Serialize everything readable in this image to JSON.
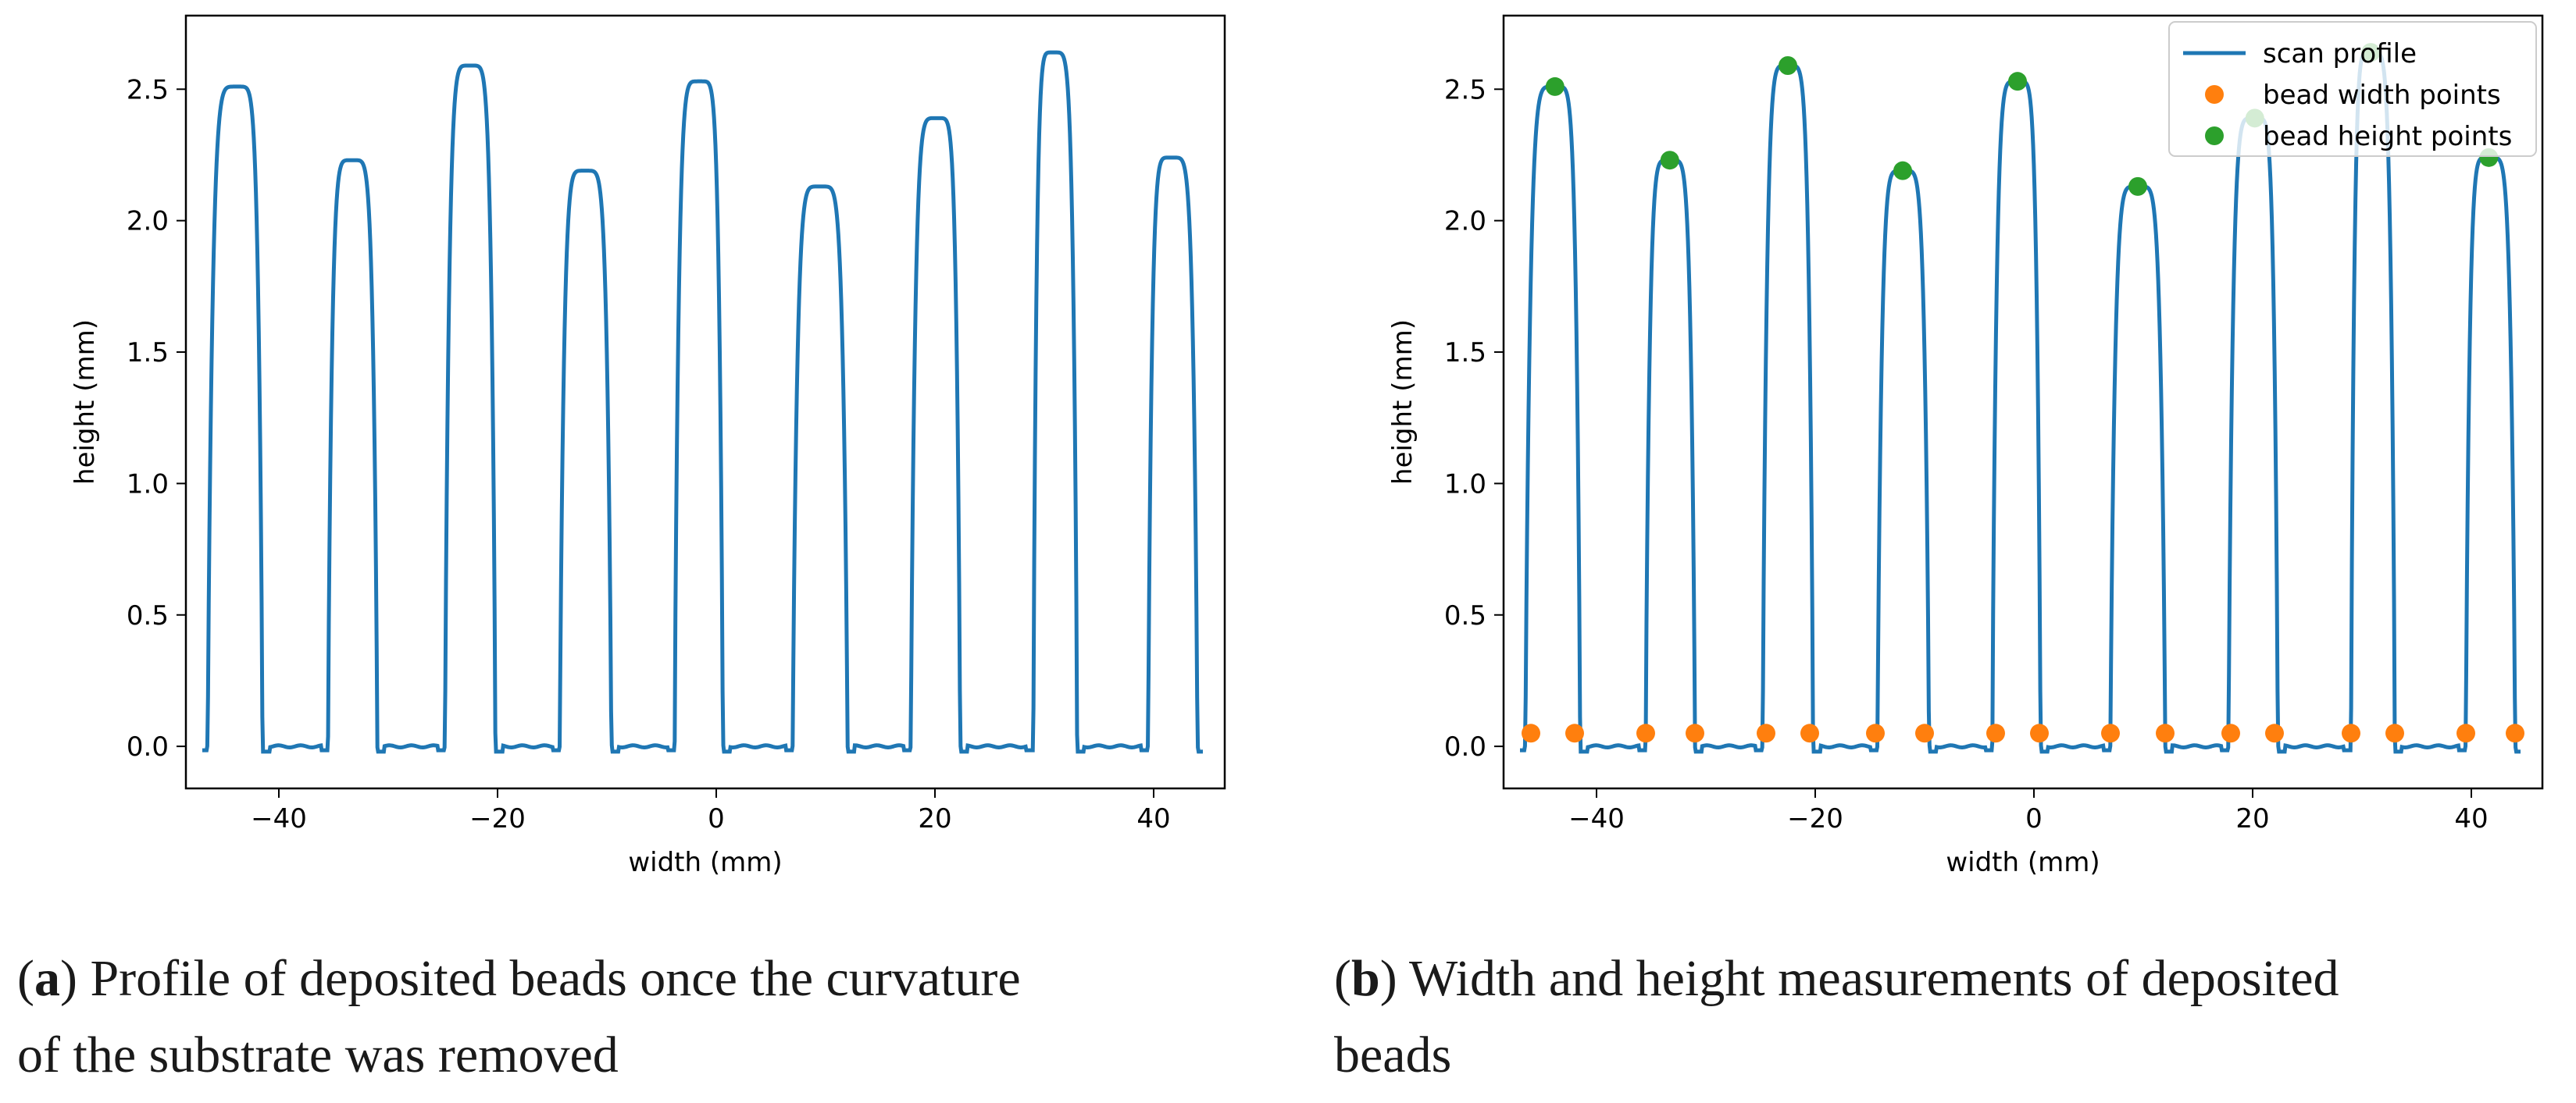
{
  "chart_data": [
    {
      "type": "line",
      "panel": "a",
      "xlabel": "width (mm)",
      "ylabel": "height (mm)",
      "xlim": [
        -48.5,
        46.5
      ],
      "ylim": [
        -0.16,
        2.78
      ],
      "xticks": [
        -40,
        -20,
        0,
        20,
        40
      ],
      "xtick_labels": [
        "−40",
        "−20",
        "0",
        "20",
        "40"
      ],
      "yticks": [
        0.0,
        0.5,
        1.0,
        1.5,
        2.0,
        2.5
      ],
      "ytick_labels": [
        "0.0",
        "0.5",
        "1.0",
        "1.5",
        "2.0",
        "2.5"
      ],
      "series": [
        {
          "name": "scan profile",
          "color": "#1f77b4",
          "x_range": [
            -47,
            44.5
          ],
          "beads": [
            {
              "center": -43.8,
              "left": -46.5,
              "right": -41.5,
              "height": 2.51
            },
            {
              "center": -33.3,
              "left": -35.5,
              "right": -31.0,
              "height": 2.23
            },
            {
              "center": -22.5,
              "left": -24.8,
              "right": -20.2,
              "height": 2.59
            },
            {
              "center": -12.0,
              "left": -14.3,
              "right": -9.6,
              "height": 2.19
            },
            {
              "center": -1.5,
              "left": -3.8,
              "right": 0.6,
              "height": 2.53
            },
            {
              "center": 9.5,
              "left": 7.0,
              "right": 12.0,
              "height": 2.13
            },
            {
              "center": 20.2,
              "left": 17.8,
              "right": 22.3,
              "height": 2.39
            },
            {
              "center": 30.8,
              "left": 29.0,
              "right": 33.0,
              "height": 2.64
            },
            {
              "center": 41.6,
              "left": 39.5,
              "right": 44.0,
              "height": 2.24
            }
          ]
        }
      ]
    },
    {
      "type": "line",
      "panel": "b",
      "xlabel": "width (mm)",
      "ylabel": "height (mm)",
      "xlim": [
        -48.5,
        46.5
      ],
      "ylim": [
        -0.16,
        2.78
      ],
      "xticks": [
        -40,
        -20,
        0,
        20,
        40
      ],
      "xtick_labels": [
        "−40",
        "−20",
        "0",
        "20",
        "40"
      ],
      "yticks": [
        0.0,
        0.5,
        1.0,
        1.5,
        2.0,
        2.5
      ],
      "ytick_labels": [
        "0.0",
        "0.5",
        "1.0",
        "1.5",
        "2.0",
        "2.5"
      ],
      "legend_position": "top-right",
      "legend": [
        "scan profile",
        "bead width points",
        "bead height points"
      ],
      "series": [
        {
          "name": "scan profile",
          "color": "#1f77b4",
          "source": "same profile as panel a"
        },
        {
          "name": "bead width points",
          "color": "#ff7f0e",
          "x": [
            -46.0,
            -42.0,
            -35.5,
            -31.0,
            -24.5,
            -20.5,
            -14.5,
            -10.0,
            -3.5,
            0.5,
            7.0,
            12.0,
            18.0,
            22.0,
            29.0,
            33.0,
            39.5,
            44.0
          ],
          "y": [
            0.05,
            0.05,
            0.05,
            0.05,
            0.05,
            0.05,
            0.05,
            0.05,
            0.05,
            0.05,
            0.05,
            0.05,
            0.05,
            0.05,
            0.05,
            0.05,
            0.05,
            0.05
          ]
        },
        {
          "name": "bead height points",
          "color": "#2ca02c",
          "x": [
            -43.8,
            -33.3,
            -22.5,
            -12.0,
            -1.5,
            9.5,
            20.2,
            30.8,
            41.6
          ],
          "y": [
            2.51,
            2.23,
            2.59,
            2.19,
            2.53,
            2.13,
            2.39,
            2.64,
            2.24
          ]
        }
      ]
    }
  ],
  "captions": {
    "a": {
      "letter": "a",
      "text_line1": ") Profile of deposited beads once the curvature",
      "text_line2": "of the substrate was removed"
    },
    "b": {
      "letter": "b",
      "text_line1": ") Width and height measurements of deposited",
      "text_line2": "beads"
    }
  }
}
